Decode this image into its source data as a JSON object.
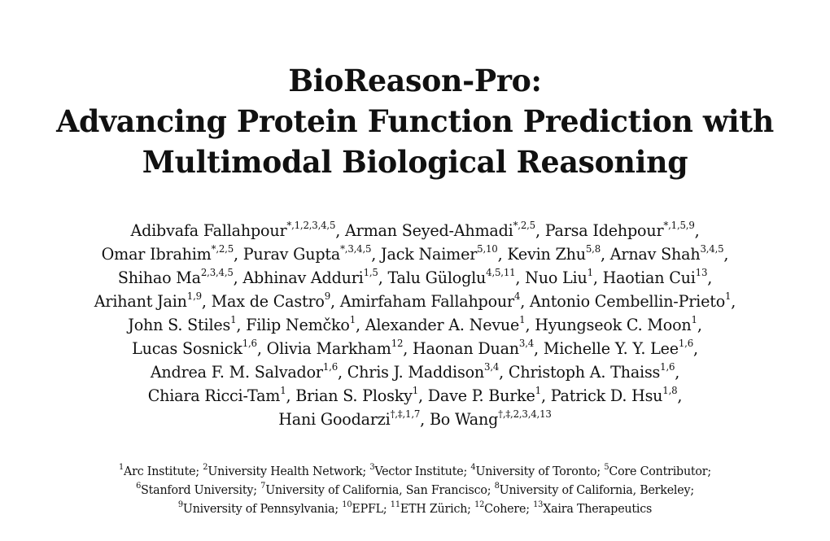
{
  "title": {
    "line1": "BioReason-Pro:",
    "line2": "Advancing Protein Function Prediction with",
    "line3": "Multimodal Biological Reasoning"
  },
  "author_lines": [
    [
      {
        "name": "Adibvafa Fallahpour",
        "sup": "*,1,2,3,4,5",
        "sep": ", "
      },
      {
        "name": "Arman Seyed-Ahmadi",
        "sup": "*,2,5",
        "sep": ", "
      },
      {
        "name": "Parsa Idehpour",
        "sup": "*,1,5,9",
        "sep": ","
      }
    ],
    [
      {
        "name": "Omar Ibrahim",
        "sup": "*,2,5",
        "sep": ", "
      },
      {
        "name": "Purav Gupta",
        "sup": "*,3,4,5",
        "sep": ", "
      },
      {
        "name": "Jack Naimer",
        "sup": "5,10",
        "sep": ", "
      },
      {
        "name": "Kevin Zhu",
        "sup": "5,8",
        "sep": ", "
      },
      {
        "name": "Arnav Shah",
        "sup": "3,4,5",
        "sep": ","
      }
    ],
    [
      {
        "name": "Shihao Ma",
        "sup": "2,3,4,5",
        "sep": ", "
      },
      {
        "name": "Abhinav Adduri",
        "sup": "1,5",
        "sep": ", "
      },
      {
        "name": "Talu Güloglu",
        "sup": "4,5,11",
        "sep": ", "
      },
      {
        "name": "Nuo Liu",
        "sup": "1",
        "sep": ", "
      },
      {
        "name": "Haotian Cui",
        "sup": "13",
        "sep": ","
      }
    ],
    [
      {
        "name": "Arihant Jain",
        "sup": "1,9",
        "sep": ", "
      },
      {
        "name": "Max de Castro",
        "sup": "9",
        "sep": ", "
      },
      {
        "name": "Amirfaham Fallahpour",
        "sup": "4",
        "sep": ", "
      },
      {
        "name": "Antonio Cembellin-Prieto",
        "sup": "1",
        "sep": ","
      }
    ],
    [
      {
        "name": "John S. Stiles",
        "sup": "1",
        "sep": ", "
      },
      {
        "name": "Filip Nemčko",
        "sup": "1",
        "sep": ", "
      },
      {
        "name": "Alexander A. Nevue",
        "sup": "1",
        "sep": ", "
      },
      {
        "name": "Hyungseok C. Moon",
        "sup": "1",
        "sep": ","
      }
    ],
    [
      {
        "name": "Lucas Sosnick",
        "sup": "1,6",
        "sep": ", "
      },
      {
        "name": "Olivia Markham",
        "sup": "12",
        "sep": ", "
      },
      {
        "name": "Haonan Duan",
        "sup": "3,4",
        "sep": ", "
      },
      {
        "name": "Michelle Y. Y. Lee",
        "sup": "1,6",
        "sep": ","
      }
    ],
    [
      {
        "name": "Andrea F. M. Salvador",
        "sup": "1,6",
        "sep": ", "
      },
      {
        "name": "Chris J. Maddison",
        "sup": "3,4",
        "sep": ", "
      },
      {
        "name": "Christoph A. Thaiss",
        "sup": "1,6",
        "sep": ","
      }
    ],
    [
      {
        "name": "Chiara Ricci-Tam",
        "sup": "1",
        "sep": ", "
      },
      {
        "name": "Brian S. Plosky",
        "sup": "1",
        "sep": ", "
      },
      {
        "name": "Dave P. Burke",
        "sup": "1",
        "sep": ", "
      },
      {
        "name": "Patrick D. Hsu",
        "sup": "1,8",
        "sep": ","
      }
    ],
    [
      {
        "name": "Hani Goodarzi",
        "sup": "†,‡,1,7",
        "sep": ", "
      },
      {
        "name": "Bo Wang",
        "sup": "†,‡,2,3,4,13",
        "sep": ""
      }
    ]
  ],
  "affiliation_lines": [
    [
      {
        "num": "1",
        "text": "Arc Institute; "
      },
      {
        "num": "2",
        "text": "University Health Network; "
      },
      {
        "num": "3",
        "text": "Vector Institute; "
      },
      {
        "num": "4",
        "text": "University of Toronto; "
      },
      {
        "num": "5",
        "text": "Core Contributor;"
      }
    ],
    [
      {
        "num": "6",
        "text": "Stanford University; "
      },
      {
        "num": "7",
        "text": "University of California, San Francisco; "
      },
      {
        "num": "8",
        "text": "University of California, Berkeley;"
      }
    ],
    [
      {
        "num": "9",
        "text": "University of Pennsylvania; "
      },
      {
        "num": "10",
        "text": "EPFL; "
      },
      {
        "num": "11",
        "text": "ETH Zürich; "
      },
      {
        "num": "12",
        "text": "Cohere; "
      },
      {
        "num": "13",
        "text": "Xaira Therapeutics"
      }
    ]
  ]
}
